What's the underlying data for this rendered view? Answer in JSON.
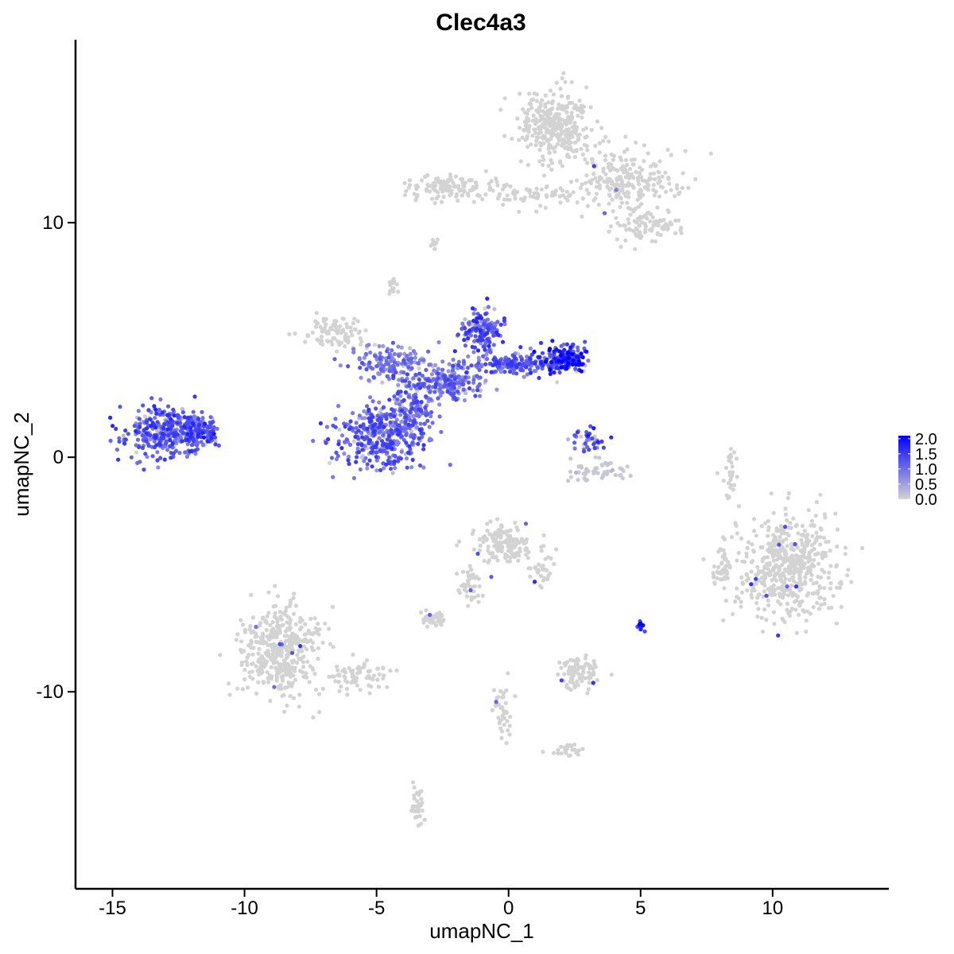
{
  "chart_data": {
    "type": "scatter",
    "title": "Clec4a3",
    "xlabel": "umapNC_1",
    "ylabel": "umapNC_2",
    "xlim": [
      -16.4,
      14.4
    ],
    "ylim": [
      -18.4,
      17.8
    ],
    "x_ticks": [
      -15,
      -10,
      -5,
      0,
      5,
      10
    ],
    "x_tick_labels": [
      "-15",
      "-10",
      "-5",
      "0",
      "5",
      "10"
    ],
    "y_ticks": [
      -10,
      0,
      10
    ],
    "y_tick_labels": [
      "-10",
      "0",
      "10"
    ],
    "grid": false,
    "legend_position": "right",
    "color_scale": {
      "low_color": "#d3d3d3",
      "high_color": "#0000ff",
      "min": 0.0,
      "max": 2.1,
      "breaks": [
        0.0,
        0.5,
        1.0,
        1.5,
        2.0
      ],
      "labels": [
        "0.0",
        "0.5",
        "1.0",
        "1.5",
        "2.0"
      ]
    },
    "clusters": [
      {
        "cx": 1.8,
        "cy": 14.2,
        "sx": 0.9,
        "sy": 1.0,
        "n": 320,
        "expr": 0.0
      },
      {
        "cx": 4.5,
        "cy": 11.8,
        "sx": 1.4,
        "sy": 0.8,
        "n": 240,
        "expr": 0.0
      },
      {
        "cx": 5.2,
        "cy": 9.8,
        "sx": 0.8,
        "sy": 0.5,
        "n": 90,
        "expr": 0.0
      },
      {
        "cx": -2.2,
        "cy": 11.5,
        "sx": 1.1,
        "sy": 0.4,
        "n": 120,
        "expr": 0.0
      },
      {
        "cx": 0.8,
        "cy": 11.2,
        "sx": 1.4,
        "sy": 0.35,
        "n": 70,
        "expr": 0.0
      },
      {
        "cx": -6.5,
        "cy": 5.3,
        "sx": 0.9,
        "sy": 0.5,
        "n": 90,
        "expr": 0.0
      },
      {
        "cx": -4.5,
        "cy": 4.0,
        "sx": 1.0,
        "sy": 0.5,
        "n": 150,
        "expr": 0.9
      },
      {
        "cx": -4.8,
        "cy": 0.9,
        "sx": 1.2,
        "sy": 0.9,
        "n": 380,
        "expr": 1.1
      },
      {
        "cx": -3.5,
        "cy": 2.2,
        "sx": 0.5,
        "sy": 1.0,
        "n": 140,
        "expr": 1.0
      },
      {
        "cx": -2.2,
        "cy": 3.2,
        "sx": 0.9,
        "sy": 0.5,
        "n": 180,
        "expr": 1.0
      },
      {
        "cx": -1.0,
        "cy": 5.4,
        "sx": 0.6,
        "sy": 0.6,
        "n": 150,
        "expr": 1.2
      },
      {
        "cx": 0.2,
        "cy": 4.0,
        "sx": 0.9,
        "sy": 0.35,
        "n": 160,
        "expr": 1.1
      },
      {
        "cx": 2.0,
        "cy": 4.2,
        "sx": 0.6,
        "sy": 0.45,
        "n": 170,
        "expr": 1.5
      },
      {
        "cx": -13.0,
        "cy": 1.1,
        "sx": 1.0,
        "sy": 0.65,
        "n": 330,
        "expr": 1.2
      },
      {
        "cx": -11.7,
        "cy": 1.2,
        "sx": 0.5,
        "sy": 0.45,
        "n": 110,
        "expr": 1.3
      },
      {
        "cx": 3.0,
        "cy": 0.7,
        "sx": 0.4,
        "sy": 0.35,
        "n": 40,
        "expr": 1.3
      },
      {
        "cx": 3.3,
        "cy": -0.6,
        "sx": 0.9,
        "sy": 0.3,
        "n": 50,
        "expr": 0.1
      },
      {
        "cx": -8.6,
        "cy": -8.2,
        "sx": 1.0,
        "sy": 1.3,
        "n": 420,
        "expr": 0.0
      },
      {
        "cx": -5.8,
        "cy": -9.3,
        "sx": 1.0,
        "sy": 0.5,
        "n": 80,
        "expr": 0.0
      },
      {
        "cx": 10.5,
        "cy": -4.7,
        "sx": 1.3,
        "sy": 1.5,
        "n": 520,
        "expr": 0.0
      },
      {
        "cx": 8.1,
        "cy": -4.6,
        "sx": 0.25,
        "sy": 0.6,
        "n": 40,
        "expr": 0.0
      },
      {
        "cx": -0.2,
        "cy": -3.8,
        "sx": 0.8,
        "sy": 0.6,
        "n": 150,
        "expr": 0.0
      },
      {
        "cx": 1.2,
        "cy": -4.8,
        "sx": 0.3,
        "sy": 0.5,
        "n": 30,
        "expr": 0.0
      },
      {
        "cx": -1.4,
        "cy": -5.5,
        "sx": 0.3,
        "sy": 0.6,
        "n": 40,
        "expr": 0.0
      },
      {
        "cx": -2.8,
        "cy": -6.9,
        "sx": 0.35,
        "sy": 0.2,
        "n": 40,
        "expr": 0.0
      },
      {
        "cx": 2.6,
        "cy": -9.2,
        "sx": 0.5,
        "sy": 0.5,
        "n": 90,
        "expr": 0.0
      },
      {
        "cx": 5.0,
        "cy": -7.2,
        "sx": 0.12,
        "sy": 0.15,
        "n": 15,
        "expr": 1.5
      },
      {
        "cx": 8.4,
        "cy": -0.6,
        "sx": 0.2,
        "sy": 0.7,
        "n": 30,
        "expr": 0.0
      },
      {
        "cx": -0.2,
        "cy": -10.8,
        "sx": 0.25,
        "sy": 0.9,
        "n": 40,
        "expr": 0.0
      },
      {
        "cx": 2.3,
        "cy": -12.5,
        "sx": 0.4,
        "sy": 0.2,
        "n": 25,
        "expr": 0.0
      },
      {
        "cx": -3.4,
        "cy": -14.8,
        "sx": 0.2,
        "sy": 0.5,
        "n": 30,
        "expr": 0.0
      },
      {
        "cx": -4.4,
        "cy": 7.3,
        "sx": 0.15,
        "sy": 0.3,
        "n": 15,
        "expr": 0.0
      },
      {
        "cx": -2.8,
        "cy": 9.0,
        "sx": 0.1,
        "sy": 0.25,
        "n": 10,
        "expr": 0.0
      }
    ]
  }
}
